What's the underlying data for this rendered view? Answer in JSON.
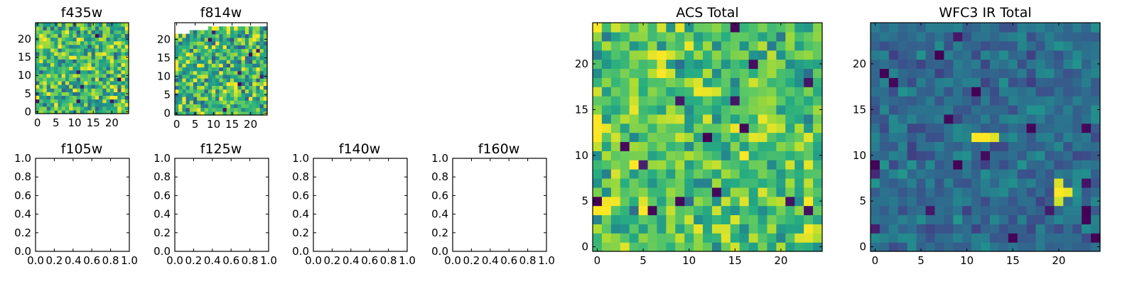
{
  "figure": {
    "background": "#ffffff"
  },
  "chart_data": [
    {
      "id": "f435w",
      "type": "heatmap",
      "title": "f435w",
      "xlim": [
        -0.5,
        24.5
      ],
      "ylim": [
        -0.5,
        24.5
      ],
      "xticks": [
        0,
        5,
        10,
        15,
        20
      ],
      "yticks": [
        0,
        5,
        10,
        15,
        20
      ],
      "xtick_labels": [
        "0",
        "5",
        "10",
        "15",
        "20"
      ],
      "ytick_labels": [
        "0",
        "5",
        "10",
        "15",
        "20"
      ],
      "colormap": "viridis",
      "vmin": 0,
      "vmax": 1,
      "grid_size": 25,
      "seed": 435,
      "mean": 0.68,
      "spread": 0.22,
      "blank_mask": [],
      "hotspots": []
    },
    {
      "id": "f814w",
      "type": "heatmap",
      "title": "f814w",
      "xlim": [
        -0.5,
        24.5
      ],
      "ylim": [
        -0.5,
        24.5
      ],
      "xticks": [
        0,
        5,
        10,
        15,
        20
      ],
      "yticks": [
        0,
        5,
        10,
        15,
        20
      ],
      "xtick_labels": [
        "0",
        "5",
        "10",
        "15",
        "20"
      ],
      "ytick_labels": [
        "0",
        "5",
        "10",
        "15",
        "20"
      ],
      "colormap": "viridis",
      "vmin": 0,
      "vmax": 1,
      "grid_size": 25,
      "seed": 814,
      "mean": 0.68,
      "spread": 0.22,
      "blank_mask": [
        {
          "x0": 0,
          "x1": 24,
          "row": 24
        },
        {
          "x0": 0,
          "x1": 8,
          "row": 23
        },
        {
          "x0": 0,
          "x1": 3,
          "row": 22
        }
      ],
      "hotspots": [
        {
          "x": 0,
          "y": 14,
          "value": 1.0
        },
        {
          "x": 0,
          "y": 13,
          "value": 1.0
        },
        {
          "x": 0,
          "y": 12,
          "value": 0.98
        }
      ]
    },
    {
      "id": "f105w",
      "type": "empty",
      "title": "f105w",
      "xlim": [
        0,
        1
      ],
      "ylim": [
        0,
        1
      ],
      "xticks": [
        0,
        0.2,
        0.4,
        0.6,
        0.8,
        1.0
      ],
      "yticks": [
        0,
        0.2,
        0.4,
        0.6,
        0.8,
        1.0
      ],
      "xtick_labels": [
        "0.0",
        "0.2",
        "0.4",
        "0.6",
        "0.8",
        "1.0"
      ],
      "ytick_labels": [
        "0.0",
        "0.2",
        "0.4",
        "0.6",
        "0.8",
        "1.0"
      ]
    },
    {
      "id": "f125w",
      "type": "empty",
      "title": "f125w",
      "xlim": [
        0,
        1
      ],
      "ylim": [
        0,
        1
      ],
      "xticks": [
        0,
        0.2,
        0.4,
        0.6,
        0.8,
        1.0
      ],
      "yticks": [
        0,
        0.2,
        0.4,
        0.6,
        0.8,
        1.0
      ],
      "xtick_labels": [
        "0.0",
        "0.2",
        "0.4",
        "0.6",
        "0.8",
        "1.0"
      ],
      "ytick_labels": [
        "0.0",
        "0.2",
        "0.4",
        "0.6",
        "0.8",
        "1.0"
      ]
    },
    {
      "id": "f140w",
      "type": "empty",
      "title": "f140w",
      "xlim": [
        0,
        1
      ],
      "ylim": [
        0,
        1
      ],
      "xticks": [
        0,
        0.2,
        0.4,
        0.6,
        0.8,
        1.0
      ],
      "yticks": [
        0,
        0.2,
        0.4,
        0.6,
        0.8,
        1.0
      ],
      "xtick_labels": [
        "0.0",
        "0.2",
        "0.4",
        "0.6",
        "0.8",
        "1.0"
      ],
      "ytick_labels": [
        "0.0",
        "0.2",
        "0.4",
        "0.6",
        "0.8",
        "1.0"
      ]
    },
    {
      "id": "f160w",
      "type": "empty",
      "title": "f160w",
      "xlim": [
        0,
        1
      ],
      "ylim": [
        0,
        1
      ],
      "xticks": [
        0,
        0.2,
        0.4,
        0.6,
        0.8,
        1.0
      ],
      "yticks": [
        0,
        0.2,
        0.4,
        0.6,
        0.8,
        1.0
      ],
      "xtick_labels": [
        "0.0",
        "0.2",
        "0.4",
        "0.6",
        "0.8",
        "1.0"
      ],
      "ytick_labels": [
        "0.0",
        "0.2",
        "0.4",
        "0.6",
        "0.8",
        "1.0"
      ]
    },
    {
      "id": "acs-total",
      "type": "heatmap",
      "title": "ACS Total",
      "xlim": [
        -0.5,
        24.5
      ],
      "ylim": [
        -0.5,
        24.5
      ],
      "xticks": [
        0,
        5,
        10,
        15,
        20
      ],
      "yticks": [
        0,
        5,
        10,
        15,
        20
      ],
      "xtick_labels": [
        "0",
        "5",
        "10",
        "15",
        "20"
      ],
      "ytick_labels": [
        "0",
        "5",
        "10",
        "15",
        "20"
      ],
      "colormap": "viridis",
      "vmin": 0,
      "vmax": 1,
      "grid_size": 25,
      "seed": 2024,
      "mean": 0.72,
      "spread": 0.17,
      "blank_mask": [],
      "hotspots": [
        {
          "x": 0,
          "y": 14,
          "value": 1.0
        },
        {
          "x": 0,
          "y": 13,
          "value": 1.0
        },
        {
          "x": 0,
          "y": 12,
          "value": 1.0
        },
        {
          "x": 1,
          "y": 13,
          "value": 0.97
        },
        {
          "x": 11,
          "y": 17,
          "value": 0.98
        },
        {
          "x": 12,
          "y": 17,
          "value": 0.97
        },
        {
          "x": 7,
          "y": 20,
          "value": 0.95
        },
        {
          "x": 19,
          "y": 13,
          "value": 0.96
        },
        {
          "x": 18,
          "y": 12,
          "value": 0.95
        },
        {
          "x": 23,
          "y": 1,
          "value": 0.96
        },
        {
          "x": 22,
          "y": 1,
          "value": 0.95
        },
        {
          "x": 12,
          "y": 12,
          "value": 0.0
        },
        {
          "x": 16,
          "y": 13,
          "value": 0.02
        },
        {
          "x": 3,
          "y": 11,
          "value": 0.03
        },
        {
          "x": 0,
          "y": 5,
          "value": 0.0
        },
        {
          "x": 13,
          "y": 6,
          "value": 0.02
        },
        {
          "x": 6,
          "y": 4,
          "value": 0.02
        },
        {
          "x": 17,
          "y": 20,
          "value": 0.04
        },
        {
          "x": 23,
          "y": 4,
          "value": 0.05
        },
        {
          "x": 23,
          "y": 18,
          "value": 0.06
        }
      ]
    },
    {
      "id": "wfc3-ir-total",
      "type": "heatmap",
      "title": "WFC3 IR Total",
      "xlim": [
        -0.5,
        24.5
      ],
      "ylim": [
        -0.5,
        24.5
      ],
      "xticks": [
        0,
        5,
        10,
        15,
        20
      ],
      "yticks": [
        0,
        5,
        10,
        15,
        20
      ],
      "xtick_labels": [
        "0",
        "5",
        "10",
        "15",
        "20"
      ],
      "ytick_labels": [
        "0",
        "5",
        "10",
        "15",
        "20"
      ],
      "colormap": "viridis",
      "vmin": 0,
      "vmax": 1,
      "grid_size": 25,
      "seed": 160,
      "mean": 0.36,
      "spread": 0.09,
      "blank_mask": [],
      "hotspots": [
        {
          "x": 11,
          "y": 12,
          "value": 1.0
        },
        {
          "x": 12,
          "y": 12,
          "value": 1.0
        },
        {
          "x": 13,
          "y": 12,
          "value": 0.96
        },
        {
          "x": 20,
          "y": 7,
          "value": 0.95
        },
        {
          "x": 20,
          "y": 6,
          "value": 1.0
        },
        {
          "x": 21,
          "y": 6,
          "value": 0.97
        },
        {
          "x": 20,
          "y": 5,
          "value": 0.93
        },
        {
          "x": 7,
          "y": 21,
          "value": 0.0
        },
        {
          "x": 2,
          "y": 18,
          "value": 0.02
        },
        {
          "x": 11,
          "y": 17,
          "value": 0.0
        },
        {
          "x": 12,
          "y": 10,
          "value": 0.03
        },
        {
          "x": 23,
          "y": 13,
          "value": 0.02
        },
        {
          "x": 23,
          "y": 4,
          "value": 0.0
        },
        {
          "x": 19,
          "y": 4,
          "value": 0.08
        },
        {
          "x": 0,
          "y": 8,
          "value": 0.12
        }
      ]
    }
  ]
}
